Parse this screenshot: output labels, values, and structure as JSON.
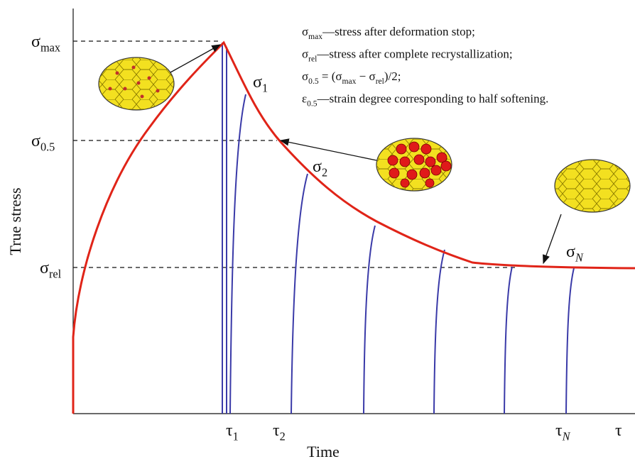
{
  "axes": {
    "y_title": "True stress",
    "x_title": "Time"
  },
  "labels": [
    {
      "segments": [
        {
          "text": "σ"
        },
        {
          "text": "max",
          "sub": true
        }
      ]
    },
    {
      "segments": [
        {
          "text": "σ"
        },
        {
          "text": "0.5",
          "sub": true
        }
      ]
    },
    {
      "segments": [
        {
          "text": "σ"
        },
        {
          "text": "rel",
          "sub": true
        }
      ]
    },
    {
      "segments": [
        {
          "text": "σ"
        },
        {
          "text": "1",
          "sub": true
        }
      ]
    },
    {
      "segments": [
        {
          "text": "σ"
        },
        {
          "text": "2",
          "sub": true
        }
      ]
    },
    {
      "segments": [
        {
          "text": "σ"
        },
        {
          "text": "N",
          "sub": true,
          "italic": true
        }
      ]
    },
    {
      "segments": [
        {
          "text": "τ"
        },
        {
          "text": "1",
          "sub": true
        }
      ]
    },
    {
      "segments": [
        {
          "text": "τ"
        },
        {
          "text": "2",
          "sub": true
        }
      ]
    },
    {
      "segments": [
        {
          "text": "τ"
        },
        {
          "text": "N",
          "sub": true,
          "italic": true
        }
      ]
    },
    {
      "segments": [
        {
          "text": "τ"
        }
      ]
    }
  ],
  "notes": [
    {
      "segments": [
        {
          "text": "σ"
        },
        {
          "text": "max",
          "sub": true
        },
        {
          "text": "—stress after deformation stop;"
        }
      ]
    },
    {
      "segments": [
        {
          "text": "σ"
        },
        {
          "text": "rel",
          "sub": true
        },
        {
          "text": "—stress after complete recrystallization;"
        }
      ]
    },
    {
      "segments": [
        {
          "text": "σ"
        },
        {
          "text": "0.5",
          "sub": true
        },
        {
          "text": " = (σ"
        },
        {
          "text": "max",
          "sub": true
        },
        {
          "text": " − σ"
        },
        {
          "text": "rel",
          "sub": true
        },
        {
          "text": ")/2;"
        }
      ]
    },
    {
      "segments": [
        {
          "text": "ε"
        },
        {
          "text": "0.5",
          "sub": true
        },
        {
          "text": "—strain degree corresponding to half softening."
        }
      ]
    }
  ]
}
